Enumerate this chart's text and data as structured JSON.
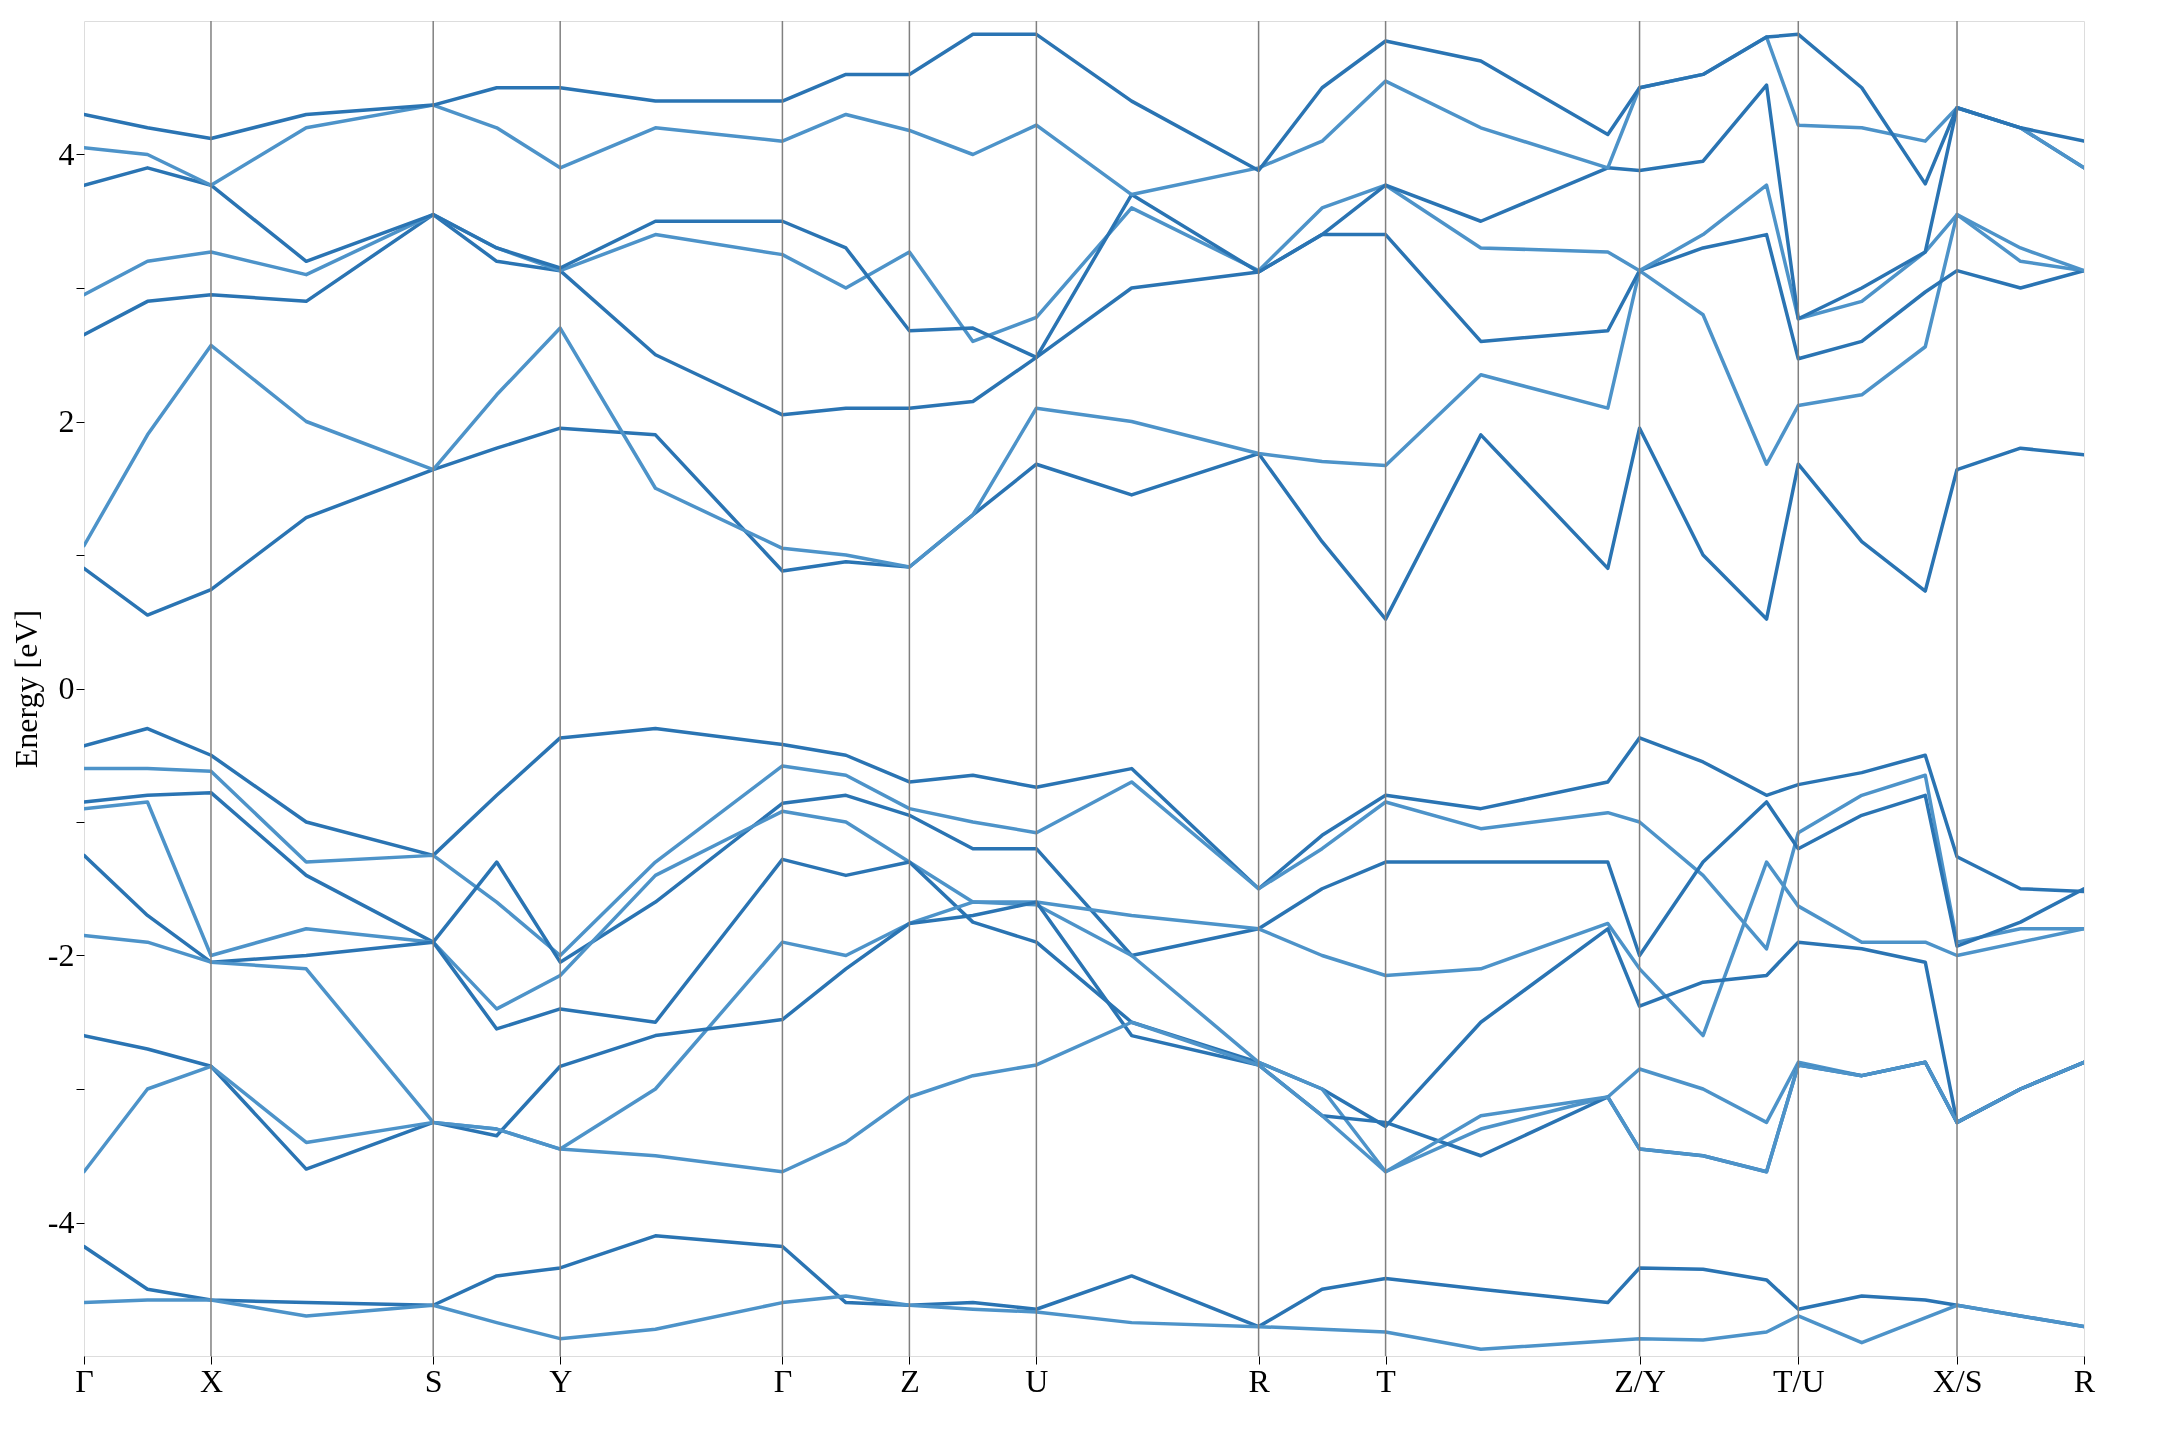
{
  "chart_data": {
    "type": "line",
    "ylabel": "Energy [eV]",
    "categories": [
      "Γ",
      null,
      null,
      null,
      "X",
      null,
      null,
      null,
      null,
      null,
      null,
      "S",
      null,
      null,
      null,
      "Y",
      null,
      null,
      null,
      null,
      null,
      null,
      "Γ",
      null,
      null,
      null,
      "Z",
      null,
      null,
      null,
      "U",
      null,
      null,
      null,
      null,
      null,
      null,
      "R",
      null,
      null,
      null,
      "T",
      null,
      null,
      null,
      null,
      null,
      null,
      null,
      "Z/Y",
      null,
      null,
      null,
      null,
      "T/U",
      null,
      null,
      null,
      null,
      "X/S",
      null,
      null,
      null,
      "R"
    ],
    "ylim": [
      -5,
      5
    ],
    "yticks": [
      {
        "value": -4,
        "label": "-4"
      },
      {
        "value": -3,
        "label": null
      },
      {
        "value": -2,
        "label": "-2"
      },
      {
        "value": -1,
        "label": null
      },
      {
        "value": 0,
        "label": "0"
      },
      {
        "value": 1,
        "label": null
      },
      {
        "value": 2,
        "label": "2"
      },
      {
        "value": 3,
        "label": null
      },
      {
        "value": 4,
        "label": "4"
      }
    ],
    "grid": "x",
    "legend": false,
    "marker": "none",
    "line_style": "solid",
    "series": [
      {
        "color": "#2a74b3",
        "values": [
          -0.43,
          null,
          -0.3,
          null,
          -0.5,
          null,
          null,
          -1.0,
          null,
          null,
          null,
          -1.25,
          null,
          -0.8,
          null,
          -0.37,
          null,
          null,
          -0.3,
          null,
          null,
          null,
          -0.42,
          null,
          -0.5,
          null,
          -0.7,
          null,
          -0.65,
          null,
          -0.74,
          null,
          null,
          -0.6,
          null,
          null,
          null,
          -1.5,
          null,
          -1.1,
          null,
          -0.8,
          null,
          null,
          -0.9,
          null,
          null,
          null,
          -0.7,
          -0.37,
          null,
          -0.55,
          null,
          -0.8,
          -0.72,
          null,
          -0.63,
          null,
          -0.5,
          -1.26,
          null,
          -1.5,
          null,
          -1.52
        ]
      },
      {
        "color": "#4d93c9",
        "values": [
          -0.6,
          null,
          -0.6,
          null,
          -0.62,
          null,
          null,
          -1.3,
          null,
          null,
          null,
          -1.25,
          null,
          -1.6,
          null,
          -2.0,
          null,
          null,
          -1.3,
          null,
          null,
          null,
          -0.58,
          null,
          -0.65,
          null,
          -0.9,
          null,
          -1.0,
          null,
          -1.08,
          null,
          null,
          -0.7,
          null,
          null,
          null,
          -1.5,
          null,
          -1.2,
          null,
          -0.85,
          null,
          null,
          -1.05,
          null,
          null,
          null,
          -0.93,
          -1.0,
          null,
          -1.4,
          null,
          -1.95,
          -1.08,
          null,
          -0.8,
          null,
          -0.65,
          -1.9,
          null,
          -1.8,
          null,
          -1.8
        ]
      },
      {
        "color": "#2a74b3",
        "values": [
          -0.85,
          null,
          -0.8,
          null,
          -0.78,
          null,
          null,
          -1.4,
          null,
          null,
          null,
          -1.9,
          null,
          -1.3,
          null,
          -2.05,
          null,
          null,
          -1.6,
          null,
          null,
          null,
          -0.86,
          null,
          -0.8,
          null,
          -0.95,
          null,
          -1.2,
          null,
          -1.2,
          null,
          null,
          -2.0,
          null,
          null,
          null,
          -1.8,
          null,
          -1.5,
          null,
          -1.3,
          null,
          null,
          -1.3,
          null,
          null,
          null,
          -1.3,
          -2.0,
          null,
          -1.3,
          null,
          -0.85,
          -1.2,
          null,
          -0.95,
          null,
          -0.8,
          -1.93,
          null,
          -1.75,
          null,
          -1.5
        ]
      },
      {
        "color": "#4d93c9",
        "values": [
          -0.9,
          null,
          -0.85,
          null,
          -2.0,
          null,
          null,
          -1.8,
          null,
          null,
          null,
          -1.9,
          null,
          -2.4,
          null,
          -2.15,
          null,
          null,
          -1.4,
          null,
          null,
          null,
          -0.92,
          null,
          -1.0,
          null,
          -1.3,
          null,
          -1.6,
          null,
          -1.6,
          null,
          null,
          -1.7,
          null,
          null,
          null,
          -1.8,
          null,
          -2.0,
          null,
          -2.15,
          null,
          null,
          -2.1,
          null,
          null,
          null,
          -1.76,
          -2.1,
          null,
          -2.6,
          null,
          -1.3,
          -1.63,
          null,
          -1.9,
          null,
          -1.9,
          -2.0,
          null,
          -1.9,
          null,
          -1.8
        ]
      },
      {
        "color": "#2a74b3",
        "values": [
          -1.25,
          null,
          -1.7,
          null,
          -2.05,
          null,
          null,
          -2.0,
          null,
          null,
          null,
          -1.9,
          null,
          -2.55,
          null,
          -2.4,
          null,
          null,
          -2.5,
          null,
          null,
          null,
          -1.28,
          null,
          -1.4,
          null,
          -1.3,
          null,
          -1.75,
          null,
          -1.9,
          null,
          null,
          -2.5,
          null,
          null,
          null,
          -2.8,
          null,
          -3.0,
          null,
          -3.28,
          null,
          null,
          -2.5,
          null,
          null,
          null,
          -1.8,
          -2.38,
          null,
          -2.2,
          null,
          -2.15,
          -1.9,
          null,
          -1.95,
          null,
          -2.05,
          -3.25,
          null,
          -3.0,
          null,
          -2.8
        ]
      },
      {
        "color": "#4d93c9",
        "values": [
          -1.85,
          null,
          -1.9,
          null,
          -2.05,
          null,
          null,
          -2.1,
          null,
          null,
          null,
          -3.25,
          null,
          -3.3,
          null,
          -3.45,
          null,
          null,
          -3.0,
          null,
          null,
          null,
          -1.9,
          null,
          -2.0,
          null,
          -1.76,
          null,
          -1.6,
          null,
          -1.62,
          null,
          null,
          -2.0,
          null,
          null,
          null,
          -2.8,
          null,
          -3.0,
          null,
          -3.62,
          null,
          null,
          -3.3,
          null,
          null,
          null,
          -3.06,
          -2.85,
          null,
          -3.0,
          null,
          -3.25,
          -2.8,
          null,
          -2.9,
          null,
          -2.8,
          -3.25,
          null,
          -3.0,
          null,
          -2.8
        ]
      },
      {
        "color": "#2a74b3",
        "values": [
          -2.6,
          null,
          -2.7,
          null,
          -2.83,
          null,
          null,
          -3.6,
          null,
          null,
          null,
          -3.25,
          null,
          -3.35,
          null,
          -2.83,
          null,
          null,
          -2.6,
          null,
          null,
          null,
          -2.48,
          null,
          -2.1,
          null,
          -1.76,
          null,
          -1.7,
          null,
          -1.6,
          null,
          null,
          -2.6,
          null,
          null,
          null,
          -2.82,
          null,
          -3.2,
          null,
          -3.25,
          null,
          null,
          -3.5,
          null,
          null,
          null,
          -3.06,
          -3.45,
          null,
          -3.5,
          null,
          -3.62,
          -2.82,
          null,
          -2.9,
          null,
          -2.8,
          -3.25,
          null,
          -3.0,
          null,
          -2.8
        ]
      },
      {
        "color": "#4d93c9",
        "values": [
          -3.62,
          null,
          -3.0,
          null,
          -2.83,
          null,
          null,
          -3.4,
          null,
          null,
          null,
          -3.25,
          null,
          -3.3,
          null,
          -3.45,
          null,
          null,
          -3.5,
          null,
          null,
          null,
          -3.62,
          null,
          -3.4,
          null,
          -3.06,
          null,
          -2.9,
          null,
          -2.82,
          null,
          null,
          -2.5,
          null,
          null,
          null,
          -2.82,
          null,
          -3.2,
          null,
          -3.62,
          null,
          null,
          -3.2,
          null,
          null,
          null,
          -3.06,
          -3.45,
          null,
          -3.5,
          null,
          -3.62,
          -2.82,
          null,
          -2.9,
          null,
          -2.8,
          -3.25,
          null,
          -3.0,
          null,
          -2.8
        ]
      },
      {
        "color": "#2a74b3",
        "values": [
          -4.18,
          null,
          -4.5,
          null,
          -4.58,
          null,
          null,
          -4.6,
          null,
          null,
          null,
          -4.62,
          null,
          -4.4,
          null,
          -4.34,
          null,
          null,
          -4.1,
          null,
          null,
          null,
          -4.18,
          null,
          -4.6,
          null,
          -4.62,
          null,
          -4.6,
          null,
          -4.65,
          null,
          null,
          -4.4,
          null,
          null,
          null,
          -4.78,
          null,
          -4.5,
          null,
          -4.42,
          null,
          null,
          -4.5,
          null,
          null,
          null,
          -4.6,
          -4.34,
          null,
          -4.35,
          null,
          -4.43,
          -4.65,
          null,
          -4.55,
          null,
          -4.58,
          -4.62,
          null,
          -4.7,
          null,
          -4.78
        ]
      },
      {
        "color": "#4d93c9",
        "values": [
          -4.6,
          null,
          -4.58,
          null,
          -4.58,
          null,
          null,
          -4.7,
          null,
          null,
          null,
          -4.62,
          null,
          -4.75,
          null,
          -4.87,
          null,
          null,
          -4.8,
          null,
          null,
          null,
          -4.6,
          null,
          -4.55,
          null,
          -4.62,
          null,
          -4.65,
          null,
          -4.67,
          null,
          null,
          -4.75,
          null,
          null,
          null,
          -4.78,
          null,
          -4.8,
          null,
          -4.82,
          null,
          null,
          -4.95,
          null,
          null,
          null,
          null,
          -4.87,
          null,
          -4.88,
          null,
          -4.82,
          -4.7,
          null,
          -4.9,
          null,
          null,
          -4.62,
          null,
          -4.7,
          null,
          -4.78
        ]
      },
      {
        "color": "#2a74b3",
        "values": [
          0.9,
          null,
          0.55,
          null,
          0.74,
          null,
          null,
          1.28,
          null,
          null,
          null,
          1.64,
          null,
          1.8,
          null,
          1.95,
          null,
          null,
          1.9,
          null,
          null,
          null,
          0.88,
          null,
          0.95,
          null,
          0.91,
          null,
          1.3,
          null,
          1.68,
          null,
          null,
          1.45,
          null,
          null,
          null,
          1.76,
          null,
          1.1,
          null,
          0.52,
          null,
          null,
          1.9,
          null,
          null,
          null,
          0.9,
          1.95,
          null,
          1.0,
          null,
          0.52,
          1.68,
          null,
          1.1,
          null,
          0.73,
          1.64,
          null,
          1.8,
          null,
          1.75
        ]
      },
      {
        "color": "#4d93c9",
        "values": [
          1.07,
          null,
          1.9,
          null,
          2.57,
          null,
          null,
          2.0,
          null,
          null,
          null,
          1.64,
          null,
          2.2,
          null,
          2.7,
          null,
          null,
          1.5,
          null,
          null,
          null,
          1.05,
          null,
          1.0,
          null,
          0.91,
          null,
          1.3,
          null,
          2.1,
          null,
          null,
          2.0,
          null,
          null,
          null,
          1.76,
          null,
          1.7,
          null,
          1.67,
          null,
          null,
          2.35,
          null,
          null,
          null,
          2.1,
          3.13,
          null,
          2.8,
          null,
          1.68,
          2.12,
          null,
          2.2,
          null,
          2.56,
          3.55,
          null,
          3.2,
          null,
          3.13
        ]
      },
      {
        "color": "#2a74b3",
        "values": [
          2.65,
          null,
          2.9,
          null,
          2.95,
          null,
          null,
          2.9,
          null,
          null,
          null,
          3.55,
          null,
          3.2,
          null,
          3.13,
          null,
          null,
          2.5,
          null,
          null,
          null,
          2.05,
          null,
          2.1,
          null,
          2.1,
          null,
          2.15,
          null,
          2.48,
          null,
          null,
          3.0,
          null,
          null,
          null,
          3.12,
          null,
          3.4,
          null,
          3.4,
          null,
          null,
          2.6,
          null,
          null,
          null,
          2.68,
          3.13,
          null,
          3.3,
          null,
          3.4,
          2.47,
          null,
          2.6,
          null,
          2.97,
          3.13,
          null,
          3.0,
          null,
          3.13
        ]
      },
      {
        "color": "#4d93c9",
        "values": [
          2.95,
          null,
          3.2,
          null,
          3.27,
          null,
          null,
          3.1,
          null,
          null,
          null,
          3.55,
          null,
          3.3,
          null,
          3.13,
          null,
          null,
          3.4,
          null,
          null,
          null,
          3.25,
          null,
          3.0,
          null,
          3.27,
          null,
          2.6,
          null,
          2.78,
          null,
          null,
          3.6,
          null,
          null,
          null,
          3.13,
          null,
          3.6,
          null,
          3.77,
          null,
          null,
          3.3,
          null,
          null,
          null,
          3.27,
          3.13,
          null,
          3.4,
          null,
          3.77,
          2.77,
          null,
          2.9,
          null,
          3.27,
          3.55,
          null,
          3.3,
          null,
          3.13
        ]
      },
      {
        "color": "#2a74b3",
        "values": [
          3.77,
          null,
          3.9,
          null,
          3.77,
          null,
          null,
          3.2,
          null,
          null,
          null,
          3.55,
          null,
          3.3,
          null,
          3.15,
          null,
          null,
          3.5,
          null,
          null,
          null,
          3.5,
          null,
          3.3,
          null,
          2.68,
          null,
          2.7,
          null,
          2.48,
          null,
          null,
          3.7,
          null,
          null,
          null,
          3.12,
          null,
          3.4,
          null,
          3.77,
          null,
          null,
          3.5,
          null,
          null,
          null,
          3.9,
          3.88,
          null,
          3.95,
          null,
          4.52,
          2.77,
          null,
          3.0,
          null,
          3.27,
          4.35,
          null,
          4.2,
          null,
          3.9
        ]
      },
      {
        "color": "#4d93c9",
        "values": [
          4.05,
          null,
          4.0,
          null,
          3.77,
          null,
          null,
          4.2,
          null,
          null,
          null,
          4.37,
          null,
          4.2,
          null,
          3.9,
          null,
          null,
          4.2,
          null,
          null,
          null,
          4.1,
          null,
          4.3,
          null,
          4.18,
          null,
          4.0,
          null,
          4.22,
          null,
          null,
          3.7,
          null,
          null,
          null,
          3.9,
          null,
          4.1,
          null,
          4.55,
          null,
          null,
          4.2,
          null,
          null,
          null,
          3.9,
          4.5,
          null,
          4.6,
          null,
          4.88,
          4.22,
          null,
          4.2,
          null,
          4.1,
          4.35,
          null,
          4.2,
          null,
          3.9
        ]
      },
      {
        "color": "#2a74b3",
        "values": [
          4.3,
          null,
          4.2,
          null,
          4.12,
          null,
          null,
          4.3,
          null,
          null,
          null,
          4.37,
          null,
          4.5,
          null,
          4.5,
          null,
          null,
          4.4,
          null,
          null,
          null,
          4.4,
          null,
          4.6,
          null,
          4.6,
          null,
          4.9,
          null,
          4.9,
          null,
          null,
          4.4,
          null,
          null,
          null,
          3.88,
          null,
          4.5,
          null,
          4.85,
          null,
          null,
          4.7,
          null,
          null,
          null,
          4.15,
          4.5,
          null,
          4.6,
          null,
          4.88,
          4.9,
          null,
          4.5,
          null,
          3.78,
          4.35,
          null,
          4.2,
          null,
          4.1
        ]
      }
    ]
  }
}
